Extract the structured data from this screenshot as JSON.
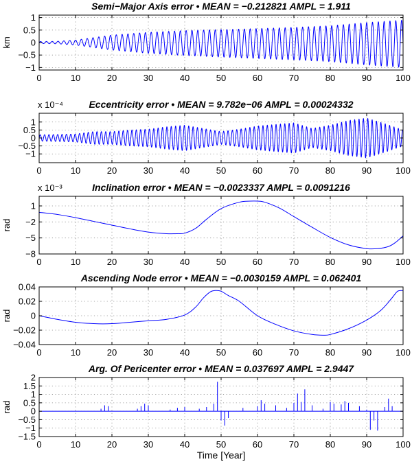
{
  "chart_data": [
    {
      "type": "line",
      "title": "Semi−Major Axis error  •   MEAN = −0.212821   AMPL = 1.911",
      "xlabel": "",
      "ylabel": "km",
      "multiplier": "",
      "xlim": [
        0,
        100
      ],
      "ylim": [
        -1.1,
        1.1
      ],
      "xticks": [
        "0",
        "10",
        "20",
        "30",
        "40",
        "50",
        "60",
        "70",
        "80",
        "90",
        "100"
      ],
      "yticks": [
        {
          "v": 1,
          "label": "1"
        },
        {
          "v": 0.5,
          "label": "0.5"
        },
        {
          "v": 0,
          "label": "0"
        },
        {
          "v": -0.5,
          "label": "−0.5"
        },
        {
          "v": -1,
          "label": "−1"
        }
      ],
      "grid": true,
      "series": [
        {
          "style": "oscillation",
          "period": 1.6,
          "envelope": {
            "x": [
              0,
              5,
              10,
              15,
              20,
              30,
              40,
              50,
              60,
              70,
              80,
              90,
              95,
              100
            ],
            "y": [
              0.04,
              0.05,
              0.1,
              0.2,
              0.3,
              0.42,
              0.5,
              0.55,
              0.6,
              0.65,
              0.72,
              0.85,
              0.9,
              0.95
            ]
          },
          "offset": {
            "x": [
              0,
              20,
              60,
              100
            ],
            "y": [
              0,
              0,
              -0.04,
              -0.05
            ]
          }
        }
      ]
    },
    {
      "type": "line",
      "title": "Eccentricity error   •   MEAN = 9.782e−06   AMPL = 0.00024332",
      "xlabel": "",
      "ylabel": "",
      "multiplier": "x 10⁻⁴",
      "xlim": [
        0,
        100
      ],
      "ylim": [
        -1.55,
        1.55
      ],
      "xticks": [
        "0",
        "10",
        "20",
        "30",
        "40",
        "50",
        "60",
        "70",
        "80",
        "90",
        "100"
      ],
      "yticks": [
        {
          "v": 1,
          "label": "1"
        },
        {
          "v": 0.5,
          "label": "0.5"
        },
        {
          "v": 0,
          "label": "0"
        },
        {
          "v": -0.5,
          "label": "−0.5"
        },
        {
          "v": -1,
          "label": "−1"
        }
      ],
      "grid": true,
      "series": [
        {
          "style": "oscillation",
          "period": 1.2,
          "envelope": {
            "x": [
              0,
              5,
              10,
              15,
              20,
              25,
              30,
              35,
              40,
              45,
              50,
              55,
              60,
              65,
              70,
              75,
              80,
              85,
              90,
              95,
              100
            ],
            "y": [
              0.2,
              0.22,
              0.25,
              0.4,
              0.4,
              0.5,
              0.55,
              0.7,
              0.8,
              0.6,
              0.4,
              0.55,
              0.75,
              0.85,
              0.95,
              0.6,
              0.8,
              1.1,
              1.25,
              0.9,
              0.5
            ]
          },
          "offset": {
            "x": [
              0,
              100
            ],
            "y": [
              0,
              0
            ]
          }
        }
      ]
    },
    {
      "type": "line",
      "title": "Inclination error   •   MEAN = −0.0023337   AMPL = 0.0091216",
      "xlabel": "",
      "ylabel": "rad",
      "multiplier": "x 10⁻³",
      "xlim": [
        0,
        100
      ],
      "ylim": [
        -8,
        2.8
      ],
      "xticks": [
        "0",
        "10",
        "20",
        "30",
        "40",
        "50",
        "60",
        "70",
        "80",
        "90",
        "100"
      ],
      "yticks": [
        {
          "v": 1,
          "label": "1"
        },
        {
          "v": -2,
          "label": "−2"
        },
        {
          "v": -5,
          "label": "−5"
        },
        {
          "v": -8,
          "label": "−8"
        }
      ],
      "grid": true,
      "series": [
        {
          "style": "smooth",
          "x": [
            0,
            5,
            10,
            15,
            20,
            25,
            30,
            35,
            38,
            40,
            43,
            46,
            50,
            55,
            58,
            60,
            62,
            66,
            70,
            75,
            80,
            85,
            90,
            93,
            96,
            98,
            100
          ],
          "y": [
            -0.2,
            -0.6,
            -1.2,
            -1.9,
            -2.6,
            -3.3,
            -3.9,
            -4.2,
            -4.2,
            -4.1,
            -3.2,
            -1.5,
            0.5,
            1.7,
            1.9,
            1.9,
            1.7,
            0.6,
            -1.0,
            -3.0,
            -4.9,
            -6.3,
            -7.0,
            -7.0,
            -6.6,
            -5.8,
            -4.6
          ]
        }
      ]
    },
    {
      "type": "line",
      "title": "Ascending Node error   •   MEAN = −0.0030159   AMPL = 0.062401",
      "xlabel": "",
      "ylabel": "rad",
      "multiplier": "",
      "xlim": [
        0,
        100
      ],
      "ylim": [
        -0.04,
        0.04
      ],
      "xticks": [
        "0",
        "10",
        "20",
        "30",
        "40",
        "50",
        "60",
        "70",
        "80",
        "90",
        "100"
      ],
      "yticks": [
        {
          "v": 0.04,
          "label": "0.04"
        },
        {
          "v": 0.02,
          "label": "0.02"
        },
        {
          "v": 0,
          "label": "0"
        },
        {
          "v": -0.02,
          "label": "−0.02"
        },
        {
          "v": -0.04,
          "label": "−0.04"
        }
      ],
      "grid": true,
      "series": [
        {
          "style": "smooth",
          "x": [
            0,
            5,
            10,
            15,
            20,
            25,
            30,
            35,
            40,
            43,
            45,
            47,
            48.5,
            50,
            52,
            55,
            60,
            65,
            70,
            75,
            78,
            80,
            85,
            90,
            94,
            97,
            98.5,
            100
          ],
          "y": [
            0,
            -0.005,
            -0.009,
            -0.011,
            -0.011,
            -0.009,
            -0.007,
            -0.005,
            0.001,
            0.012,
            0.024,
            0.033,
            0.035,
            0.034,
            0.028,
            0.02,
            0.0,
            -0.012,
            -0.021,
            -0.026,
            -0.027,
            -0.026,
            -0.018,
            -0.006,
            0.008,
            0.025,
            0.034,
            0.035
          ]
        }
      ]
    },
    {
      "type": "line",
      "title": "Arg. Of Pericenter error   •   MEAN = 0.037697   AMPL = 2.9447",
      "xlabel": "Time  [Year]",
      "ylabel": "rad",
      "multiplier": "",
      "xlim": [
        0,
        100
      ],
      "ylim": [
        -1.5,
        2.0
      ],
      "xticks": [
        "0",
        "10",
        "20",
        "30",
        "40",
        "50",
        "60",
        "70",
        "80",
        "90",
        "100"
      ],
      "yticks": [
        {
          "v": 2,
          "label": "2"
        },
        {
          "v": 1.5,
          "label": "1.5"
        },
        {
          "v": 1,
          "label": "1"
        },
        {
          "v": 0.5,
          "label": "0.5"
        },
        {
          "v": 0,
          "label": "0"
        },
        {
          "v": -0.5,
          "label": "−0.5"
        },
        {
          "v": -1,
          "label": "−1"
        },
        {
          "v": -1.5,
          "label": "−1.5"
        }
      ],
      "grid": true,
      "series": [
        {
          "style": "spikes",
          "baseline": 0,
          "x": [
            17,
            18,
            19,
            27,
            28,
            29,
            30,
            36,
            38,
            40,
            44,
            46,
            48,
            49,
            50,
            51,
            52,
            56,
            60,
            61,
            62,
            65,
            68,
            70,
            71,
            72,
            73,
            75,
            78,
            80,
            81,
            83,
            84,
            85,
            88,
            90,
            91,
            92,
            93,
            95,
            96,
            97
          ],
          "y": [
            0.15,
            0.35,
            0.3,
            0.15,
            0.3,
            0.45,
            0.35,
            0.1,
            0.2,
            0.25,
            0.15,
            0.25,
            0.45,
            1.75,
            -0.55,
            -0.85,
            -0.4,
            0.2,
            0.3,
            0.65,
            0.45,
            0.35,
            0.2,
            0.5,
            1.05,
            0.55,
            1.3,
            0.35,
            0.15,
            0.55,
            0.45,
            0.4,
            0.6,
            0.5,
            0.3,
            0.1,
            -1.1,
            -0.55,
            -1.15,
            0.25,
            0.75,
            0.3
          ]
        }
      ]
    }
  ]
}
